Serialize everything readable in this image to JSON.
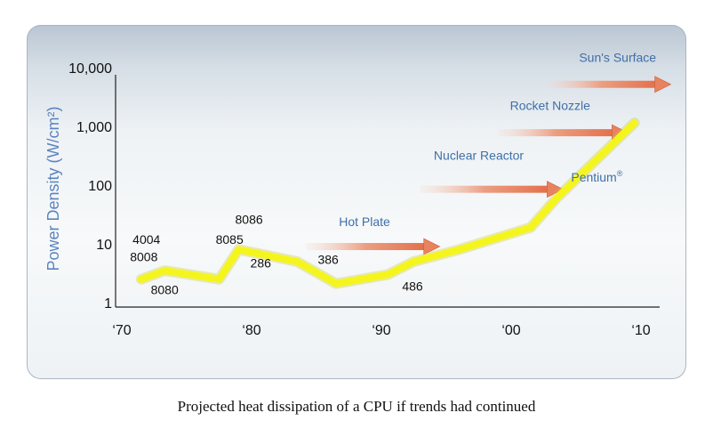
{
  "caption": "Projected heat dissipation of a CPU if trends had continued",
  "colors": {
    "line": "#f5f51e",
    "line_glow": "#c8cc3a",
    "arrow": "#e8825f",
    "annotation_text": "#3f6fa8",
    "ylabel": "#5b84be"
  },
  "chart_data": {
    "type": "line",
    "ylabel": "Power Density (W/cm²)",
    "xlabel": "",
    "yscale": "log",
    "ylim": [
      1,
      10000
    ],
    "xlim": [
      1970,
      2010
    ],
    "grid": false,
    "yticks": [
      {
        "value": 1,
        "label": "1"
      },
      {
        "value": 10,
        "label": "10"
      },
      {
        "value": 100,
        "label": "100"
      },
      {
        "value": 1000,
        "label": "1,000"
      },
      {
        "value": 10000,
        "label": "10,000"
      }
    ],
    "xticks": [
      {
        "value": 1970,
        "label": "‘70"
      },
      {
        "value": 1980,
        "label": "‘80"
      },
      {
        "value": 1990,
        "label": "‘90"
      },
      {
        "value": 2000,
        "label": "‘00"
      },
      {
        "value": 2010,
        "label": "‘10"
      }
    ],
    "series": [
      {
        "points": [
          {
            "x": 1971.5,
            "y": 2.5
          },
          {
            "x": 1973.3,
            "y": 3.5
          },
          {
            "x": 1977.5,
            "y": 2.5
          },
          {
            "x": 1979.0,
            "y": 8.0
          },
          {
            "x": 1983.5,
            "y": 5.0
          },
          {
            "x": 1986.5,
            "y": 2.1
          },
          {
            "x": 1990.5,
            "y": 3.0
          },
          {
            "x": 1992.5,
            "y": 5.0
          },
          {
            "x": 1996.0,
            "y": 8.0
          },
          {
            "x": 2001.5,
            "y": 19.0
          },
          {
            "x": 2003.5,
            "y": 60.0
          },
          {
            "x": 2009.5,
            "y": 1150.0
          }
        ]
      }
    ],
    "chip_labels": [
      {
        "text": "4004",
        "x": 1971.9,
        "y": 10.0
      },
      {
        "text": "8008",
        "x": 1971.7,
        "y": 5.1
      },
      {
        "text": "8080",
        "x": 1973.3,
        "y": 1.4
      },
      {
        "text": "8085",
        "x": 1978.3,
        "y": 10.0
      },
      {
        "text": "8086",
        "x": 1979.8,
        "y": 22.0
      },
      {
        "text": "286",
        "x": 1980.7,
        "y": 4.0
      },
      {
        "text": "386",
        "x": 1985.9,
        "y": 4.6
      },
      {
        "text": "486",
        "x": 1992.4,
        "y": 1.6
      },
      {
        "text": "Pentium",
        "x": 2006.6,
        "y": 115.0,
        "sup": "®",
        "annotation": true
      }
    ],
    "annotations": [
      {
        "label": "Hot Plate",
        "label_x": 1988.7,
        "label_y": 20.0,
        "arrow_x0": 1984.2,
        "arrow_x1": 1994.5,
        "arrow_y": 9.0
      },
      {
        "label": "Nuclear Reactor",
        "label_x": 1997.5,
        "label_y": 270.0,
        "arrow_x0": 1993.0,
        "arrow_x1": 2004.0,
        "arrow_y": 85.0
      },
      {
        "label": "Rocket Nozzle",
        "label_x": 2003.0,
        "label_y": 1900.0,
        "arrow_x0": 1999.0,
        "arrow_x1": 2009.0,
        "arrow_y": 780.0
      },
      {
        "label": "Sun's Surface",
        "label_x": 2008.2,
        "label_y": 12500.0,
        "arrow_x0": 2002.8,
        "arrow_x1": 2012.3,
        "arrow_y": 5200.0
      }
    ]
  }
}
